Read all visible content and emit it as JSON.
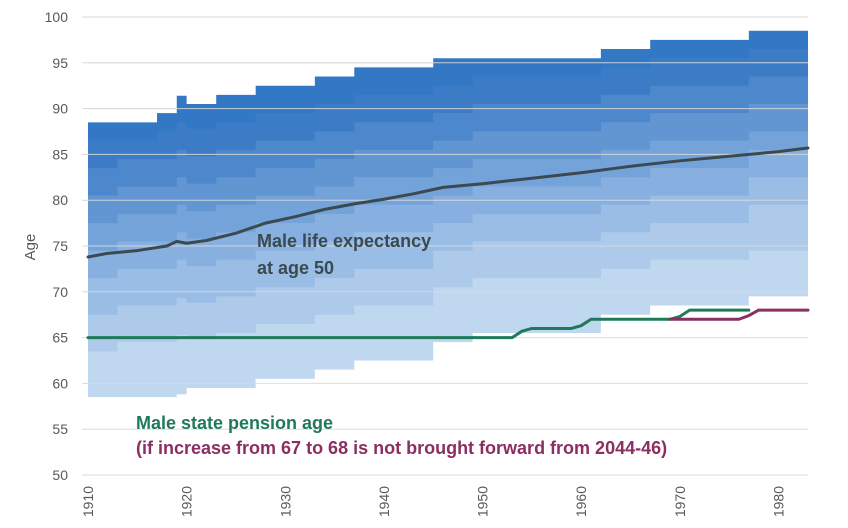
{
  "chart_data": {
    "type": "area",
    "ylabel": "Age",
    "xlabel": "",
    "xlim": [
      1910,
      1983
    ],
    "ylim": [
      50,
      100
    ],
    "x_ticks": [
      "1910",
      "1920",
      "1930",
      "1940",
      "1950",
      "1960",
      "1970",
      "1980"
    ],
    "y_ticks": [
      "50",
      "55",
      "60",
      "65",
      "70",
      "75",
      "80",
      "85",
      "90",
      "95",
      "100"
    ],
    "grid": true,
    "band_colors": [
      "#d3e3f5",
      "#c0d7f0",
      "#adcaeb",
      "#9abde6",
      "#87b0e0",
      "#74a3da",
      "#6196d3",
      "#4e88cc",
      "#3c7cc6",
      "#3278c4"
    ],
    "bands_x": [
      1910,
      1913,
      1917,
      1919,
      1920,
      1923,
      1927,
      1933,
      1937,
      1945,
      1949,
      1962,
      1967,
      1977,
      1983
    ],
    "bands": [
      [
        58.5,
        58.5,
        58.5,
        58.8,
        59.5,
        59.5,
        60.5,
        61.5,
        62.5,
        64.5,
        65.5,
        67.5,
        68.5,
        69.5,
        69.5
      ],
      [
        63.5,
        64.5,
        64.5,
        65.3,
        64.8,
        65.5,
        66.5,
        67.5,
        68.5,
        70.5,
        71.5,
        72.5,
        73.5,
        74.5,
        74.5
      ],
      [
        67.5,
        68.5,
        68.5,
        69.3,
        68.8,
        69.5,
        70.5,
        71.5,
        72.5,
        74.5,
        75.5,
        76.5,
        77.5,
        79.5,
        79.5
      ],
      [
        71.5,
        72.5,
        72.5,
        73.5,
        72.8,
        73.5,
        74.5,
        75.5,
        76.5,
        77.5,
        78.5,
        79.5,
        80.5,
        82.5,
        82.5
      ],
      [
        74.5,
        75.5,
        75.5,
        76.5,
        75.8,
        76.5,
        77.5,
        78.5,
        79.5,
        80.5,
        81.5,
        82.5,
        83.5,
        85.5,
        85.5
      ],
      [
        77.5,
        78.5,
        78.5,
        79.5,
        78.8,
        79.5,
        80.5,
        81.5,
        82.5,
        83.5,
        84.5,
        85.5,
        86.5,
        87.5,
        87.5
      ],
      [
        80.5,
        81.5,
        81.5,
        82.5,
        81.8,
        82.5,
        83.5,
        84.5,
        85.5,
        86.5,
        87.5,
        88.5,
        89.5,
        90.5,
        90.5
      ],
      [
        83.5,
        84.5,
        84.5,
        85.5,
        84.8,
        85.5,
        86.5,
        87.5,
        88.5,
        89.5,
        90.5,
        91.5,
        92.5,
        93.5,
        93.5
      ],
      [
        86.5,
        86.5,
        87.5,
        88.5,
        87.8,
        88.5,
        89.5,
        90.5,
        91.5,
        92.5,
        93.5,
        94.5,
        95.5,
        96.5,
        96.5
      ],
      [
        88.5,
        88.5,
        89.5,
        91.4,
        90.5,
        91.5,
        92.5,
        93.5,
        94.5,
        95.5,
        95.5,
        96.5,
        97.5,
        98.5,
        98.5
      ]
    ],
    "series": [
      {
        "name": "Male life expectancy at age 50",
        "color": "#3a4a50",
        "x": [
          1910,
          1912,
          1915,
          1918,
          1919,
          1920,
          1922,
          1925,
          1928,
          1931,
          1934,
          1937,
          1940,
          1943,
          1946,
          1950,
          1955,
          1960,
          1965,
          1970,
          1975,
          1980,
          1983
        ],
        "y": [
          73.8,
          74.2,
          74.5,
          75.0,
          75.5,
          75.3,
          75.6,
          76.4,
          77.5,
          78.2,
          79.0,
          79.6,
          80.1,
          80.7,
          81.4,
          81.8,
          82.4,
          83.0,
          83.7,
          84.3,
          84.8,
          85.3,
          85.7
        ]
      },
      {
        "name": "Male state pension age",
        "color": "#1f7a5a",
        "x": [
          1910,
          1953,
          1954,
          1955,
          1959,
          1960,
          1961,
          1969,
          1970,
          1971,
          1977
        ],
        "y": [
          65,
          65,
          65.7,
          66,
          66,
          66.3,
          67,
          67,
          67.3,
          68,
          68
        ]
      },
      {
        "name": "(if increase from 67 to 68 is not brought forward from 2044-46)",
        "color": "#8b2e62",
        "x": [
          1969,
          1976,
          1977,
          1978,
          1983
        ],
        "y": [
          67,
          67,
          67.4,
          68,
          68
        ]
      }
    ],
    "annotations": {
      "life_expectancy": [
        "Male life expectancy",
        "at age 50"
      ],
      "pension_age": "Male state pension age",
      "not_brought_forward": "(if increase from 67 to 68 is not brought forward from 2044-46)"
    }
  }
}
